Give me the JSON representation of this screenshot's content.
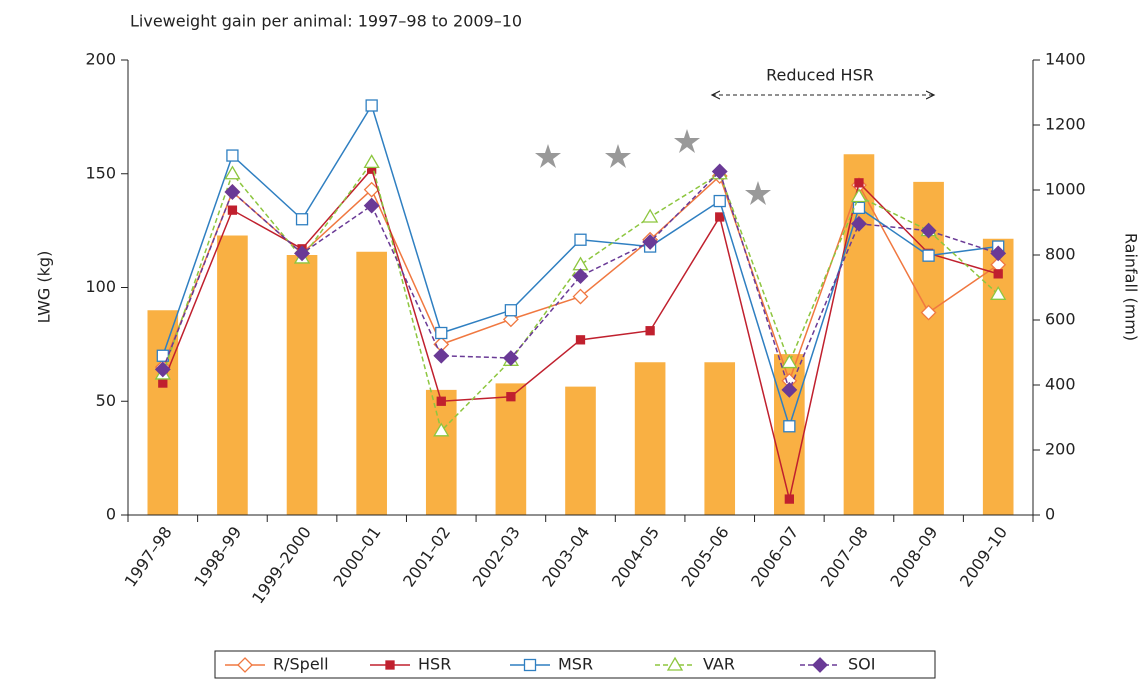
{
  "chart_data": {
    "type": "bar-line",
    "title": "Liveweight gain per animal: 1997–98 to 2009–10",
    "y_label": "LWG (kg)",
    "y2_label": "Rainfall (mm)",
    "annotation": "Reduced HSR",
    "categories": [
      "1997–98",
      "1998–99",
      "1999–2000",
      "2000–01",
      "2001–02",
      "2002–03",
      "2003–04",
      "2004–05",
      "2005–06",
      "2006–07",
      "2007–08",
      "2008–09",
      "2009–10"
    ],
    "ylim": [
      0,
      200
    ],
    "yticks": [
      0,
      50,
      100,
      150,
      200
    ],
    "y2lim": [
      0,
      1400
    ],
    "y2ticks": [
      0,
      200,
      400,
      600,
      800,
      1000,
      1200,
      1400
    ],
    "bars": {
      "color": "#f9b043",
      "axis": "y2",
      "values": [
        630,
        860,
        800,
        810,
        385,
        405,
        395,
        470,
        470,
        495,
        1110,
        1025,
        850
      ]
    },
    "series": [
      {
        "name": "R/Spell",
        "color": "#f07840",
        "marker": "diamond-open",
        "dashed": false,
        "values": [
          65,
          142,
          115,
          143,
          75,
          86,
          96,
          121,
          149,
          59,
          145,
          89,
          110
        ]
      },
      {
        "name": "HSR",
        "color": "#c0202e",
        "marker": "square-filled",
        "dashed": false,
        "values": [
          58,
          134,
          117,
          152,
          50,
          52,
          77,
          81,
          131,
          7,
          146,
          115,
          106
        ]
      },
      {
        "name": "MSR",
        "color": "#2f7fc1",
        "marker": "square-open",
        "dashed": false,
        "values": [
          70,
          158,
          130,
          180,
          80,
          90,
          121,
          118,
          138,
          39,
          135,
          114,
          118
        ]
      },
      {
        "name": "VAR",
        "color": "#8dc63f",
        "marker": "triangle-open",
        "dashed": true,
        "values": [
          62,
          150,
          113,
          155,
          37,
          68,
          110,
          131,
          150,
          67,
          140,
          125,
          97
        ]
      },
      {
        "name": "SOI",
        "color": "#6a3a96",
        "marker": "diamond-filled",
        "dashed": true,
        "values": [
          64,
          142,
          115,
          136,
          70,
          69,
          105,
          120,
          151,
          55,
          128,
          125,
          115
        ]
      }
    ]
  }
}
